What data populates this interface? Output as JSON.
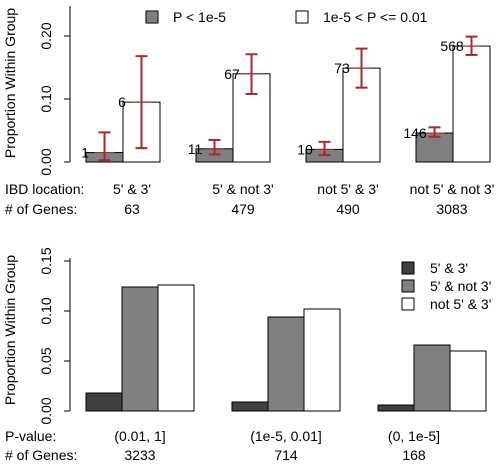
{
  "colors": {
    "p_lt_1e5": "#808080",
    "p_mid": "#ffffff",
    "dark": "#404040",
    "mid": "#808080",
    "light": "#ffffff",
    "error_bar": "#a52a2a"
  },
  "chart_data": [
    {
      "type": "bar",
      "ylabel": "Proportion Within Group",
      "ylim": [
        0,
        0.22
      ],
      "yticks": [
        "0.00",
        "0.10",
        "0.20"
      ],
      "grid": false,
      "legend_position": "top",
      "row_labels": [
        "IBD location:",
        "# of Genes:"
      ],
      "categories": [
        "5' & 3'",
        "5' & not 3'",
        "not 5' & 3'",
        "not 5' & not 3'"
      ],
      "gene_counts": [
        "63",
        "479",
        "490",
        "3083"
      ],
      "series": [
        {
          "name": "P < 1e-5",
          "values": [
            0.015,
            0.021,
            0.02,
            0.046
          ],
          "error_low": [
            0.003,
            0.012,
            0.011,
            0.04
          ],
          "error_high": [
            0.047,
            0.035,
            0.032,
            0.055
          ],
          "labels": [
            "1",
            "11",
            "10",
            "146"
          ]
        },
        {
          "name": "1e-5 < P <= 0.01",
          "values": [
            0.095,
            0.14,
            0.149,
            0.184
          ],
          "error_low": [
            0.022,
            0.108,
            0.118,
            0.17
          ],
          "error_high": [
            0.168,
            0.171,
            0.18,
            0.199
          ],
          "labels": [
            "6",
            "67",
            "73",
            "568"
          ]
        }
      ]
    },
    {
      "type": "bar",
      "ylabel": "Proportion Within Group",
      "ylim": [
        0,
        0.16
      ],
      "yticks": [
        "0.00",
        "0.05",
        "0.10",
        "0.15"
      ],
      "grid": false,
      "legend_position": "top-right",
      "row_labels": [
        "P-value:",
        "# of Genes:"
      ],
      "categories": [
        "(0.01, 1]",
        "(1e-5, 0.01]",
        "(0, 1e-5]"
      ],
      "gene_counts": [
        "3233",
        "714",
        "168"
      ],
      "series": [
        {
          "name": "5' & 3'",
          "values": [
            0.018,
            0.009,
            0.006
          ]
        },
        {
          "name": "5' & not 3'",
          "values": [
            0.124,
            0.094,
            0.066
          ]
        },
        {
          "name": "not 5' & 3'",
          "values": [
            0.126,
            0.102,
            0.06
          ]
        }
      ]
    }
  ]
}
